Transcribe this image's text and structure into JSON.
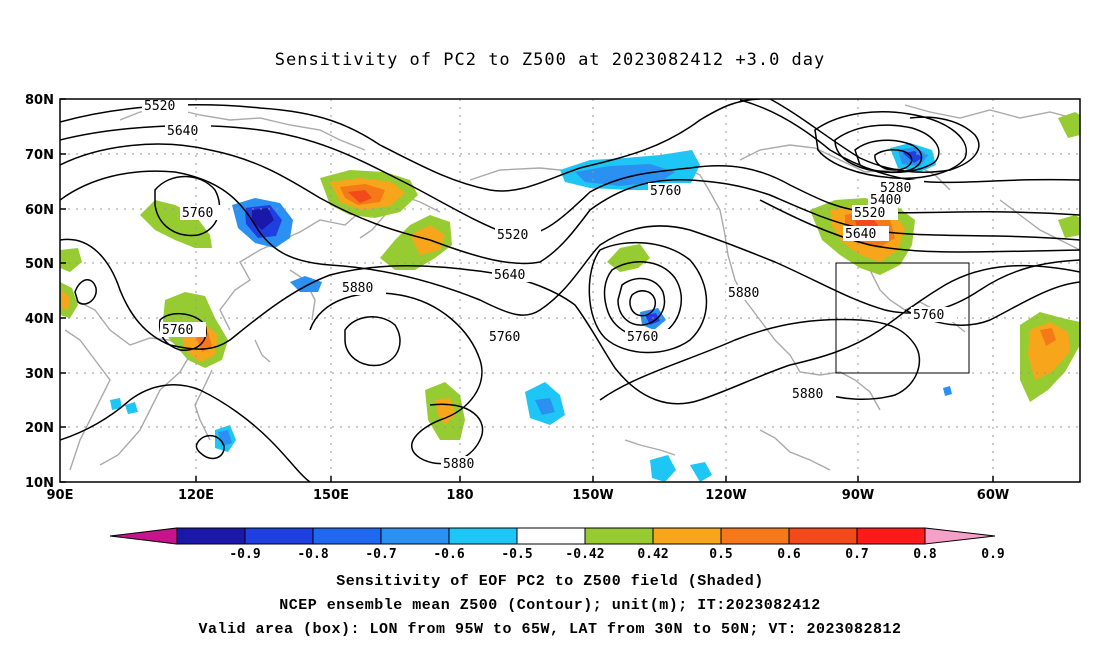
{
  "title": "Sensitivity of PC2 to Z500 at 2023082412 +3.0 day",
  "axes": {
    "lat_labels": [
      "80N",
      "70N",
      "60N",
      "50N",
      "40N",
      "30N",
      "20N",
      "10N"
    ],
    "lon_labels": [
      "90E",
      "120E",
      "150E",
      "180",
      "150W",
      "120W",
      "90W",
      "60W"
    ]
  },
  "contour_labels": [
    {
      "text": "5520"
    },
    {
      "text": "5640"
    },
    {
      "text": "5760"
    },
    {
      "text": "5760"
    },
    {
      "text": "5880"
    },
    {
      "text": "5520"
    },
    {
      "text": "5640"
    },
    {
      "text": "5760"
    },
    {
      "text": "5760"
    },
    {
      "text": "5760"
    },
    {
      "text": "5880"
    },
    {
      "text": "5880"
    },
    {
      "text": "5880"
    },
    {
      "text": "5280"
    },
    {
      "text": "5400"
    },
    {
      "text": "5520"
    },
    {
      "text": "5640"
    },
    {
      "text": "5760"
    }
  ],
  "colorbar": {
    "labels": [
      "-0.9",
      "-0.8",
      "-0.7",
      "-0.6",
      "-0.5",
      "-0.42",
      "0.42",
      "0.5",
      "0.6",
      "0.7",
      "0.8",
      "0.9"
    ],
    "colors": [
      "#1a18a8",
      "#1f3fe0",
      "#2168f0",
      "#2a90f2",
      "#1ec6f5",
      "#ffffff",
      "#96cc32",
      "#f7a51a",
      "#f57918",
      "#f24a1a",
      "#ff1a1a"
    ],
    "left_arrow_color": "#c8148c",
    "right_arrow_color": "#f5a0c8"
  },
  "captions": [
    "Sensitivity of EOF PC2 to Z500 field (Shaded)",
    "NCEP ensemble mean Z500 (Contour); unit(m); IT:2023082412",
    "Valid area (box): LON from 95W to 65W, LAT from 30N to 50N; VT: 2023082812"
  ]
}
